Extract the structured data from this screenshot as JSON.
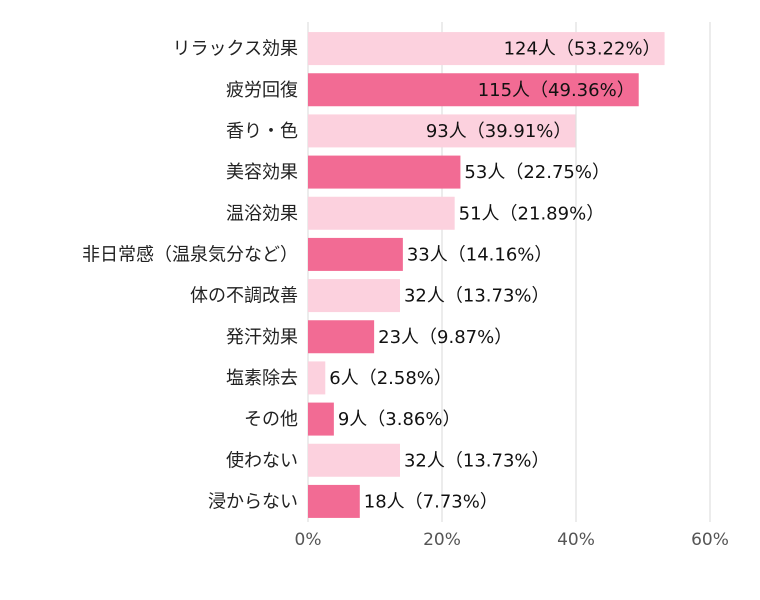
{
  "chart_data": {
    "type": "barh",
    "categories": [
      "リラックス効果",
      "疲労回復",
      "香り・色",
      "美容効果",
      "温浴効果",
      "非日常感（温泉気分など）",
      "体の不調改善",
      "発汗効果",
      "塩素除去",
      "その他",
      "使わない",
      "浸からない"
    ],
    "values": [
      53.22,
      49.36,
      39.91,
      22.75,
      21.89,
      14.16,
      13.73,
      9.87,
      2.58,
      3.86,
      13.73,
      7.73
    ],
    "value_labels": [
      "124人（53.22%）",
      "115人（49.36%）",
      "93人（39.91%）",
      "53人（22.75%）",
      "51人（21.89%）",
      "33人（14.16%）",
      "32人（13.73%）",
      "23人（9.87%）",
      "6人（2.58%）",
      "9人（3.86%）",
      "32人（13.73%）",
      "18人（7.73%）"
    ],
    "colors": [
      "#fcd1de",
      "#f26b94",
      "#fcd1de",
      "#f26b94",
      "#fcd1de",
      "#f26b94",
      "#fcd1de",
      "#f26b94",
      "#fcd1de",
      "#f26b94",
      "#fcd1de",
      "#f26b94"
    ],
    "xlim": [
      0,
      60
    ],
    "xticks": [
      {
        "value": 0,
        "label": "0%"
      },
      {
        "value": 20,
        "label": "20%"
      },
      {
        "value": 40,
        "label": "40%"
      },
      {
        "value": 60,
        "label": "60%"
      }
    ],
    "grid": true
  }
}
